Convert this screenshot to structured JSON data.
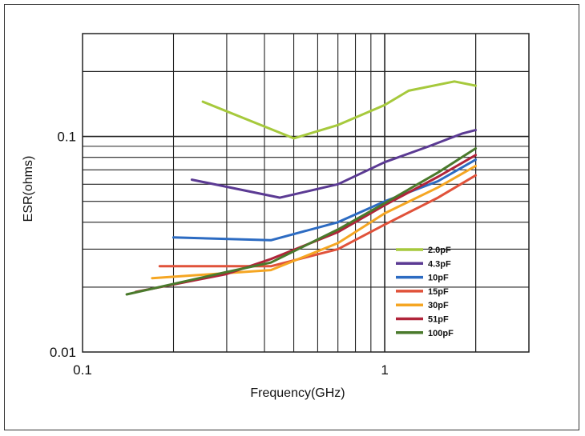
{
  "chart_data": {
    "type": "line",
    "xlabel": "Frequency(GHz)",
    "ylabel": "ESR(ohms)",
    "x_scale": "log",
    "y_scale": "log",
    "xlim": [
      0.1,
      3
    ],
    "ylim": [
      0.01,
      0.3
    ],
    "x_tick_labels": [
      {
        "value": 0.1,
        "label": "0.1"
      },
      {
        "value": 1,
        "label": "1"
      }
    ],
    "y_tick_labels": [
      {
        "value": 0.1,
        "label": "0.1"
      },
      {
        "value": 0.01,
        "label": "0.01"
      }
    ],
    "grid": true,
    "legend_position": "bottom-right",
    "series": [
      {
        "name": "2.0pF",
        "color": "#a6c93c",
        "points": [
          [
            0.25,
            0.145
          ],
          [
            0.5,
            0.098
          ],
          [
            0.7,
            0.113
          ],
          [
            1,
            0.14
          ],
          [
            1.2,
            0.163
          ],
          [
            1.7,
            0.18
          ],
          [
            2,
            0.172
          ]
        ]
      },
      {
        "name": "4.3pF",
        "color": "#5b3a93",
        "points": [
          [
            0.23,
            0.063
          ],
          [
            0.45,
            0.052
          ],
          [
            0.7,
            0.06
          ],
          [
            1,
            0.076
          ],
          [
            1.4,
            0.09
          ],
          [
            1.8,
            0.103
          ],
          [
            2,
            0.107
          ]
        ]
      },
      {
        "name": "10pF",
        "color": "#2c6bc2",
        "points": [
          [
            0.2,
            0.034
          ],
          [
            0.42,
            0.033
          ],
          [
            0.7,
            0.04
          ],
          [
            1,
            0.05
          ],
          [
            1.5,
            0.062
          ],
          [
            2,
            0.078
          ]
        ]
      },
      {
        "name": "15pF",
        "color": "#e0523a",
        "points": [
          [
            0.18,
            0.025
          ],
          [
            0.42,
            0.025
          ],
          [
            0.7,
            0.03
          ],
          [
            1,
            0.039
          ],
          [
            1.5,
            0.052
          ],
          [
            2,
            0.066
          ]
        ]
      },
      {
        "name": "30pF",
        "color": "#f5a623",
        "points": [
          [
            0.17,
            0.022
          ],
          [
            0.42,
            0.024
          ],
          [
            0.7,
            0.032
          ],
          [
            1,
            0.044
          ],
          [
            1.5,
            0.058
          ],
          [
            2,
            0.073
          ]
        ]
      },
      {
        "name": "51pF",
        "color": "#b0243a",
        "points": [
          [
            0.15,
            0.019
          ],
          [
            0.3,
            0.023
          ],
          [
            0.42,
            0.027
          ],
          [
            0.7,
            0.036
          ],
          [
            1,
            0.048
          ],
          [
            1.5,
            0.065
          ],
          [
            2,
            0.082
          ]
        ]
      },
      {
        "name": "100pF",
        "color": "#4a7a2c",
        "points": [
          [
            0.14,
            0.0185
          ],
          [
            0.3,
            0.0235
          ],
          [
            0.42,
            0.026
          ],
          [
            0.7,
            0.037
          ],
          [
            1,
            0.049
          ],
          [
            1.5,
            0.068
          ],
          [
            2,
            0.088
          ]
        ]
      }
    ]
  }
}
